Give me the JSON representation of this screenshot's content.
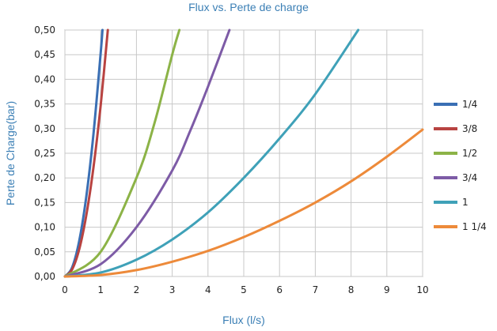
{
  "chart_data": {
    "type": "line",
    "title": "Flux vs. Perte de charge",
    "xlabel": "Flux (l/s)",
    "ylabel": "Perte de Charge(bar)",
    "xlim": [
      0,
      10
    ],
    "ylim": [
      0,
      0.5
    ],
    "x_ticks": [
      "0",
      "1",
      "2",
      "3",
      "4",
      "5",
      "6",
      "7",
      "8",
      "9",
      "10"
    ],
    "y_ticks": [
      "0,00",
      "0,05",
      "0,10",
      "0,15",
      "0,20",
      "0,25",
      "0,30",
      "0,35",
      "0,40",
      "0,45",
      "0,50"
    ],
    "grid": true,
    "legend_position": "right",
    "text_color": "#3b7fb5",
    "series": [
      {
        "name": "1/4",
        "color": "#3a6fb4",
        "x": [
          0,
          0.2,
          0.4,
          0.6,
          0.8,
          1.0,
          1.05
        ],
        "y": [
          0,
          0.018,
          0.072,
          0.163,
          0.29,
          0.453,
          0.5
        ]
      },
      {
        "name": "3/8",
        "color": "#b84341",
        "x": [
          0,
          0.2,
          0.4,
          0.6,
          0.8,
          1.0,
          1.2
        ],
        "y": [
          0,
          0.014,
          0.055,
          0.125,
          0.222,
          0.347,
          0.5
        ]
      },
      {
        "name": "1/2",
        "color": "#8cb347",
        "x": [
          0,
          1.0,
          2.0,
          2.5,
          3.0,
          3.2
        ],
        "y": [
          0,
          0.05,
          0.2,
          0.31,
          0.45,
          0.5
        ]
      },
      {
        "name": "3/4",
        "color": "#7d5ba6",
        "x": [
          0,
          1.0,
          2.0,
          3.0,
          3.5,
          4.0,
          4.6
        ],
        "y": [
          0,
          0.025,
          0.1,
          0.215,
          0.295,
          0.385,
          0.5
        ]
      },
      {
        "name": "1",
        "color": "#3fa1b8",
        "x": [
          0,
          1,
          2,
          3,
          4,
          5,
          6,
          7,
          8.2
        ],
        "y": [
          0,
          0.008,
          0.034,
          0.075,
          0.13,
          0.2,
          0.28,
          0.37,
          0.5
        ]
      },
      {
        "name": "1 1/4",
        "color": "#ed8a3a",
        "x": [
          0,
          1,
          2,
          3,
          4,
          5,
          6,
          7,
          8,
          9,
          10
        ],
        "y": [
          0,
          0.003,
          0.013,
          0.03,
          0.052,
          0.08,
          0.113,
          0.15,
          0.193,
          0.243,
          0.298
        ]
      }
    ]
  }
}
